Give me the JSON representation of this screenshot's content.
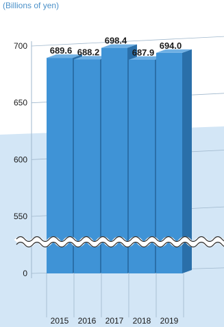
{
  "chart_data": {
    "type": "bar",
    "unit_label": "(Billions of yen)",
    "categories": [
      "2015",
      "2016",
      "2017",
      "2018",
      "2019"
    ],
    "values": [
      689.6,
      688.2,
      698.4,
      687.9,
      694.0
    ],
    "value_labels": [
      "689.6",
      "688.2",
      "698.4",
      "687.9",
      "694.0"
    ],
    "y_ticks": [
      "700",
      "650",
      "600",
      "550",
      "0"
    ],
    "ylim": [
      500,
      700
    ],
    "axis_break": "between 550 and 0",
    "style": "3d-bar",
    "grid": true,
    "colors": {
      "bar_front": "#3f93d6",
      "bar_side": "#2a6fa9",
      "bar_top": "#6fb0e4",
      "lower_band": "#d3e6f6",
      "grid": "#9fb7cc",
      "label": "#1a1a1a",
      "unit": "#4a90c8"
    }
  }
}
